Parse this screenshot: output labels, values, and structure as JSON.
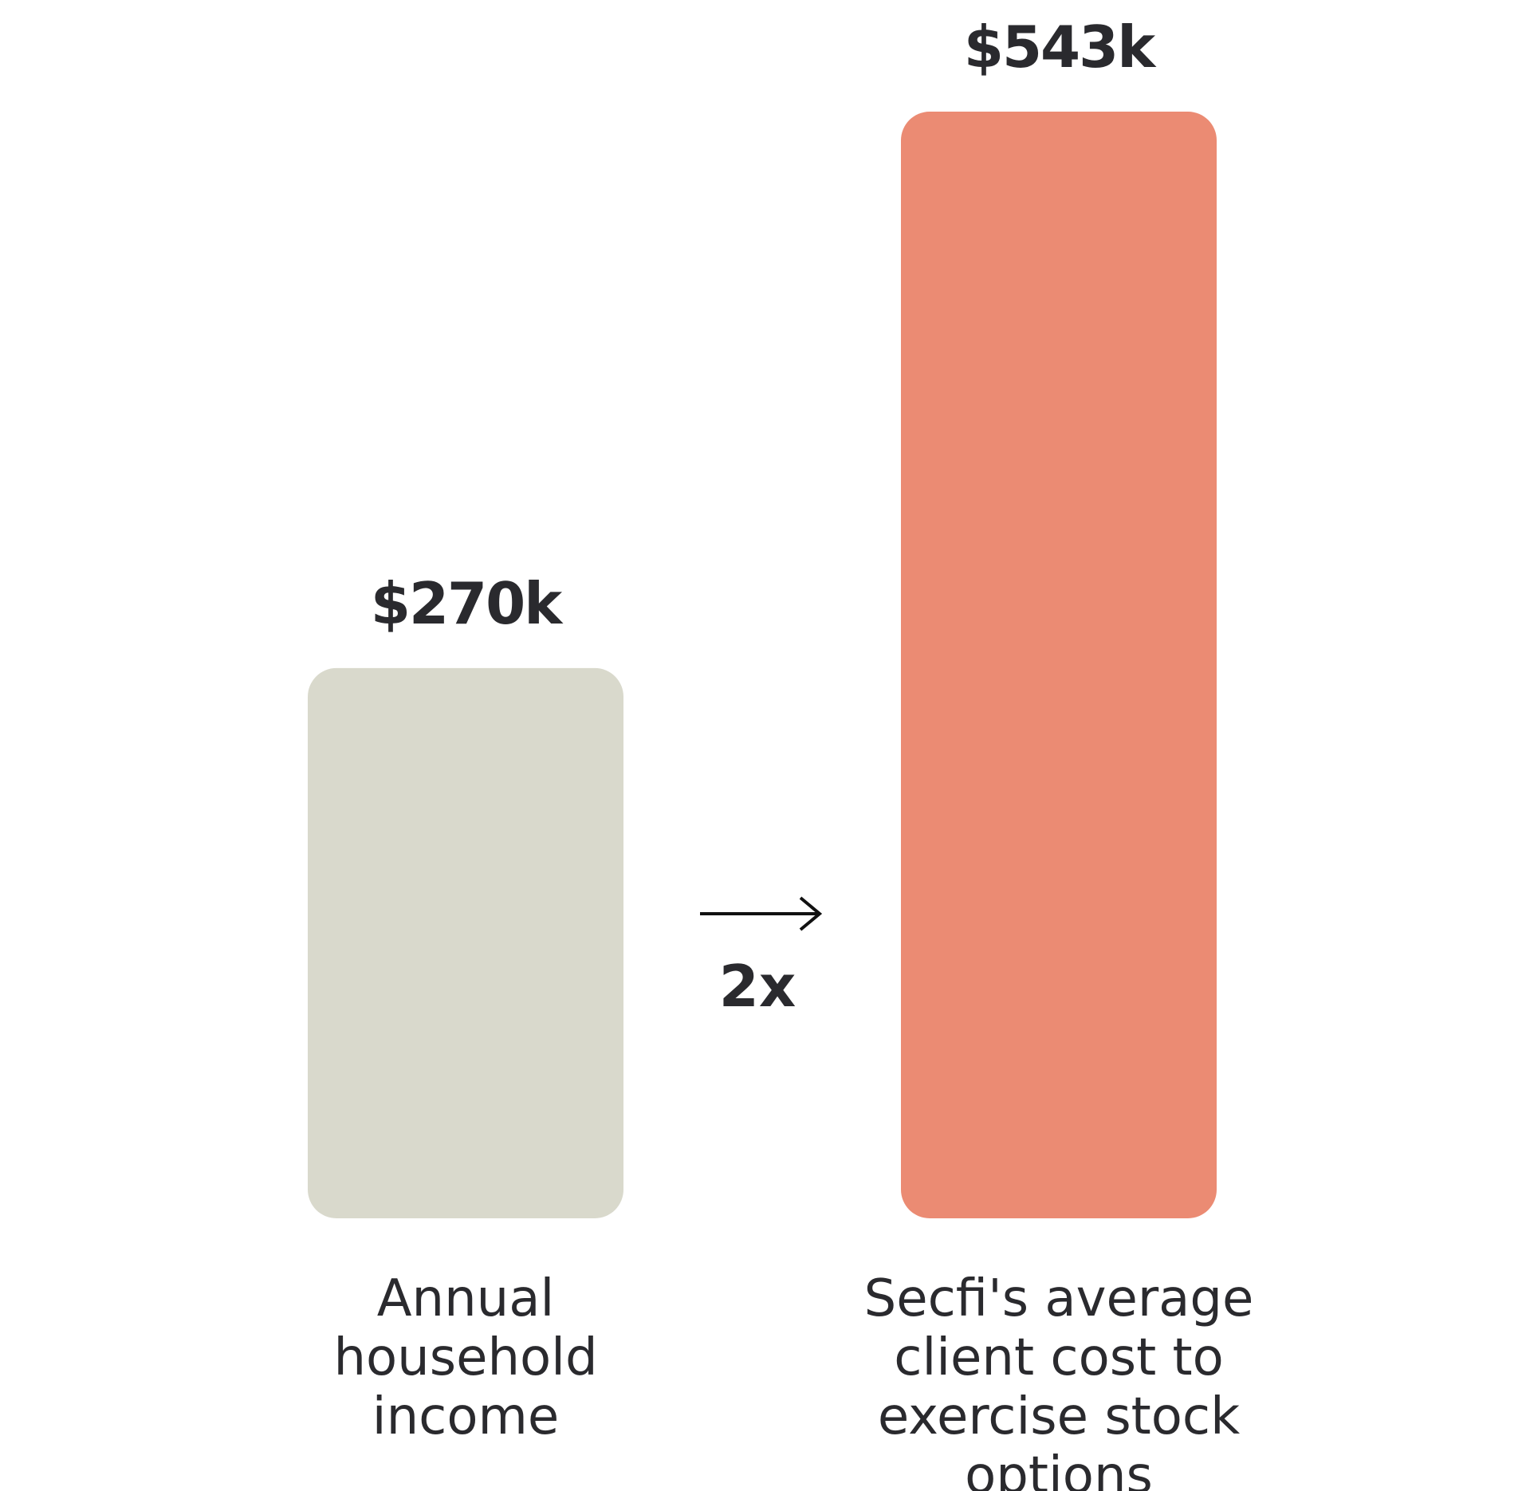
{
  "chart_data": {
    "type": "bar",
    "categories": [
      "Annual household income",
      "Secfi's average client cost to exercise stock options"
    ],
    "category_lines": [
      [
        "Annual",
        "household",
        "income"
      ],
      [
        "Secfi's average",
        "client cost to",
        "exercise stock",
        "options"
      ]
    ],
    "values": [
      270,
      543
    ],
    "value_labels": [
      "$270k",
      "$543k"
    ],
    "unit": "k USD",
    "colors": [
      "#d9d9cc",
      "#eb8b73"
    ],
    "title": "",
    "xlabel": "",
    "ylabel": "",
    "ylim": [
      0,
      543
    ],
    "grid": false,
    "annotations": [
      {
        "text": "2x",
        "icon": "arrow-right-icon"
      }
    ]
  }
}
